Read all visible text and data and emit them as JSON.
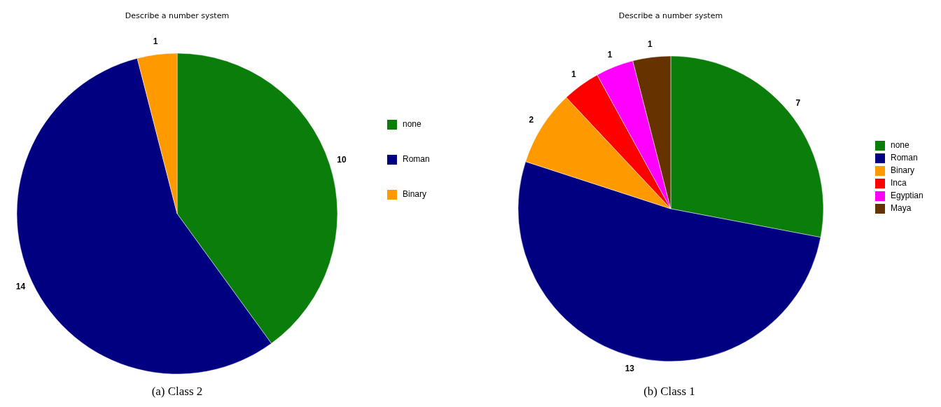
{
  "chart_data": [
    {
      "type": "pie",
      "title": "Describe a number system",
      "categories": [
        "none",
        "Roman",
        "Binary"
      ],
      "values": [
        10,
        14,
        1
      ],
      "colors": [
        "#0a7d0a",
        "#000080",
        "#ff9900"
      ],
      "data_labels": true,
      "legend": "right",
      "annotations": [
        "(a) Class 2"
      ]
    },
    {
      "type": "pie",
      "title": "Describe a number system",
      "categories": [
        "none",
        "Roman",
        "Binary",
        "Inca",
        "Egyptian",
        "Maya"
      ],
      "values": [
        7,
        13,
        2,
        1,
        1,
        1
      ],
      "colors": [
        "#0a7d0a",
        "#000080",
        "#ff9900",
        "#ff0000",
        "#ff00ff",
        "#663300"
      ],
      "data_labels": true,
      "legend": "right",
      "annotations": [
        "(b) Class 1"
      ]
    }
  ]
}
